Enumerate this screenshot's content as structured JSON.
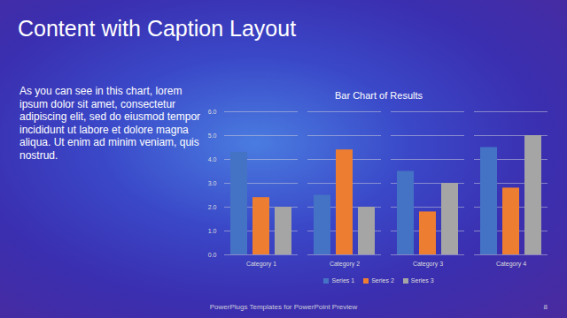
{
  "slide": {
    "title": "Content with Caption Layout",
    "caption": "As you can see in this chart, lorem ipsum dolor sit amet, consectetur adipiscing elit, sed do eiusmod tempor incididunt ut labore et dolore magna aliqua. Ut enim ad minim veniam, quis nostrud.",
    "footer": "PowerPlugs Templates for PowerPoint Preview",
    "page_number": 8
  },
  "chart_data": {
    "type": "bar",
    "title": "Bar Chart of Results",
    "categories": [
      "Category 1",
      "Category 2",
      "Category 3",
      "Category 4"
    ],
    "series": [
      {
        "name": "Series 1",
        "color": "#4472c4",
        "values": [
          4.3,
          2.5,
          3.5,
          4.5
        ]
      },
      {
        "name": "Series 2",
        "color": "#ed7d31",
        "values": [
          2.4,
          4.4,
          1.8,
          2.8
        ]
      },
      {
        "name": "Series 3",
        "color": "#a5a5a5",
        "values": [
          2.0,
          2.0,
          3.0,
          5.0
        ]
      }
    ],
    "ylim": [
      0,
      6
    ],
    "yticks": [
      0,
      1,
      2,
      3,
      4,
      5,
      6
    ],
    "grid": true,
    "legend": "bottom"
  }
}
